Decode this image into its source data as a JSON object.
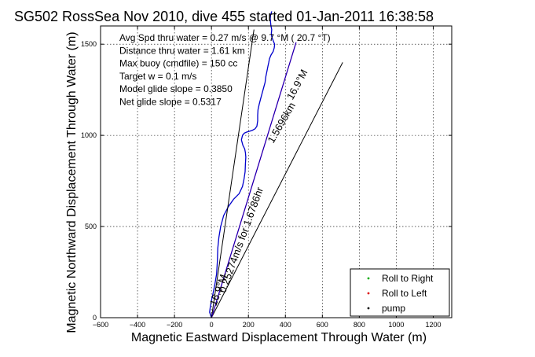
{
  "chart_data": {
    "type": "line",
    "title": "SG502 RossSea Nov 2010, dive 455 started 01-Jan-2011 16:38:58",
    "xlabel": "Magnetic Eastward Displacement Through Water (m)",
    "ylabel": "Magnetic Northward Displacement Through Water (m)",
    "xlim": [
      -600,
      1300
    ],
    "ylim": [
      0,
      1600
    ],
    "xticks": [
      -600,
      -400,
      -200,
      0,
      200,
      400,
      600,
      800,
      1000,
      1200
    ],
    "yticks": [
      0,
      500,
      1000,
      1500
    ],
    "xtick_labels": [
      "−600",
      "−400",
      "−200",
      "0",
      "200",
      "400",
      "600",
      "800",
      "1000",
      "1200"
    ],
    "ytick_labels": [
      "0",
      "500",
      "1000",
      "1500"
    ],
    "grid": true,
    "legend": {
      "placement": "bottom-right",
      "entries": [
        {
          "label": "Roll to Right",
          "color": "#00aa00",
          "marker": "."
        },
        {
          "label": "Roll to Left",
          "color": "#dd0000",
          "marker": "."
        },
        {
          "label": "pump",
          "color": "#000000",
          "marker": "."
        }
      ]
    },
    "stats_lines": [
      "Avg Spd thru water =  0.27 m/s @   9.7  °M ( 20.7 °T)",
      "Distance thru water =  1.61 km",
      "Max buoy (cmdfile) = 150 cc",
      "Target w = 0.1 m/s",
      "Model glide slope = 0.3850",
      "Net glide slope = 0.5317"
    ],
    "series": [
      {
        "role": "track",
        "color": "#0000cc",
        "width": 1.3,
        "x": [
          0,
          -5,
          -10,
          -6,
          0,
          8,
          18,
          28,
          32,
          34,
          40,
          50,
          66,
          92,
          120,
          150,
          168,
          176,
          182,
          184,
          186,
          184,
          180,
          170,
          162,
          168,
          178,
          190,
          205,
          222,
          236,
          246,
          250,
          250,
          252,
          258,
          266,
          274,
          282,
          290,
          294,
          300,
          306,
          310,
          314,
          322,
          334,
          340,
          342,
          334,
          326,
          324,
          326,
          322,
          320,
          318,
          320,
          326
        ],
        "y": [
          0,
          15,
          30,
          60,
          95,
          130,
          180,
          240,
          310,
          380,
          440,
          500,
          560,
          610,
          650,
          680,
          720,
          760,
          800,
          845,
          880,
          905,
          925,
          945,
          975,
          1000,
          1012,
          1018,
          1022,
          1028,
          1036,
          1050,
          1080,
          1110,
          1140,
          1170,
          1200,
          1230,
          1260,
          1290,
          1320,
          1350,
          1380,
          1400,
          1420,
          1440,
          1460,
          1480,
          1500,
          1520,
          1540,
          1560,
          1580,
          1600,
          1620,
          1640,
          1660,
          1680
        ]
      },
      {
        "role": "heading-line-16.9M",
        "color": "#000000",
        "width": 1,
        "x": [
          0,
          230
        ],
        "y": [
          0,
          1580
        ]
      },
      {
        "role": "heading-line-16.9M",
        "color": "#000000",
        "width": 1,
        "x": [
          0,
          710
        ],
        "y": [
          0,
          1400
        ]
      },
      {
        "role": "distance-line-1.5696km",
        "color": "#cc00cc",
        "width": 1.3,
        "x": [
          0,
          458
        ],
        "y": [
          0,
          1510
        ]
      },
      {
        "role": "distance-line-1.5696km",
        "color": "#0000aa",
        "width": 1,
        "x": [
          0,
          458
        ],
        "y": [
          0,
          1510
        ]
      }
    ],
    "annotations": [
      {
        "text": "16.9°M",
        "x": 480,
        "y": 1270,
        "angle": -62,
        "size": 13
      },
      {
        "text": "1.5696km",
        "x": 395,
        "y": 1060,
        "angle": -60,
        "size": 13
      },
      {
        "text": "0.25274m/s for 1.6786hr",
        "x": 178,
        "y": 420,
        "angle": -70,
        "size": 13
      },
      {
        "text": "16.9°M",
        "x": 55,
        "y": 145,
        "angle": -70,
        "size": 13
      }
    ]
  }
}
